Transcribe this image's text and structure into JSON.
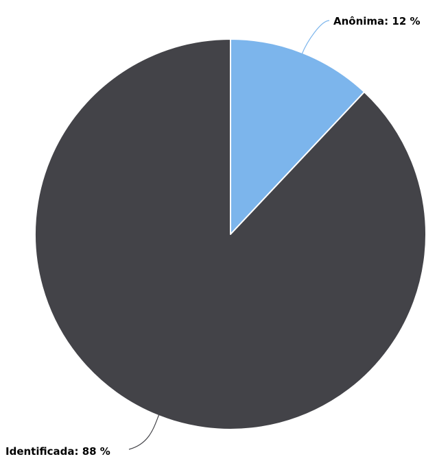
{
  "chart_data": {
    "type": "pie",
    "title": "",
    "start_angle_deg": 0,
    "direction": "clockwise",
    "grid": false,
    "legend": "none",
    "slices": [
      {
        "label": "Anônima",
        "value": 12,
        "unit": "%",
        "display": "Anônima: 12 %",
        "color": "#7cb5ec"
      },
      {
        "label": "Identificada",
        "value": 88,
        "unit": "%",
        "display": "Identificada: 88 %",
        "color": "#434348"
      }
    ]
  }
}
